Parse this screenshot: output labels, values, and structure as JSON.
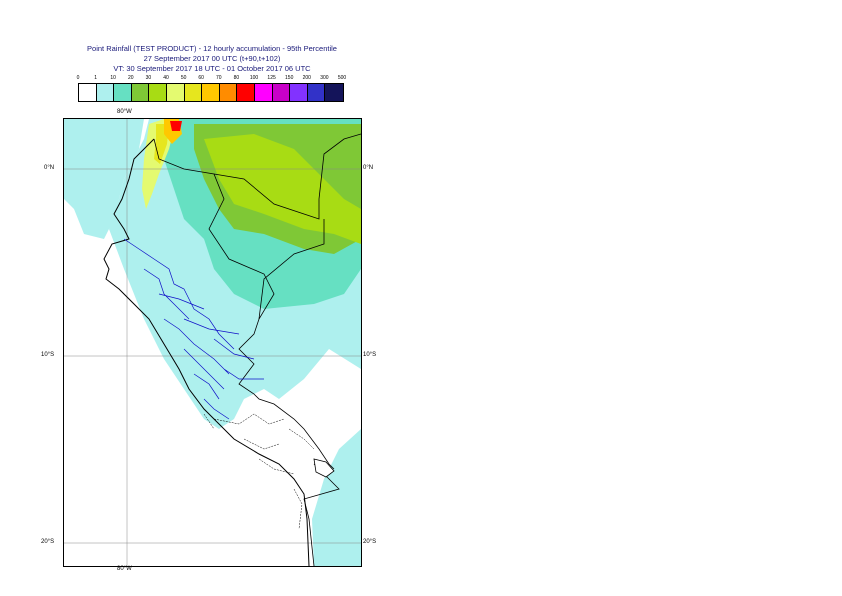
{
  "title": {
    "line1": "Point Rainfall (TEST PRODUCT) - 12 hourly accumulation - 95th Percentile",
    "line2": "27 September 2017 00 UTC (t+90,t+102)",
    "line3": "VT: 30 September 2017 18 UTC - 01 October 2017 06 UTC"
  },
  "legend": {
    "labels": [
      "0",
      "1",
      "10",
      "20",
      "30",
      "40",
      "50",
      "60",
      "70",
      "80",
      "100",
      "125",
      "150",
      "200",
      "300",
      "500"
    ],
    "colors": [
      "#ffffff",
      "#aef0ee",
      "#66e0c2",
      "#7fc836",
      "#a8dc14",
      "#e4fa70",
      "#e6e61e",
      "#ffc800",
      "#ff8c00",
      "#ff0000",
      "#ff00ff",
      "#c800c8",
      "#8232ff",
      "#3232c8",
      "#14145a"
    ]
  },
  "axes": {
    "lon_top": "80°W",
    "lon_bottom": "80°W",
    "lat_0_left": "0°N",
    "lat_0_right": "0°N",
    "lat_10_left": "10°S",
    "lat_10_right": "10°S",
    "lat_20_left": "20°S",
    "lat_20_right": "20°S"
  }
}
